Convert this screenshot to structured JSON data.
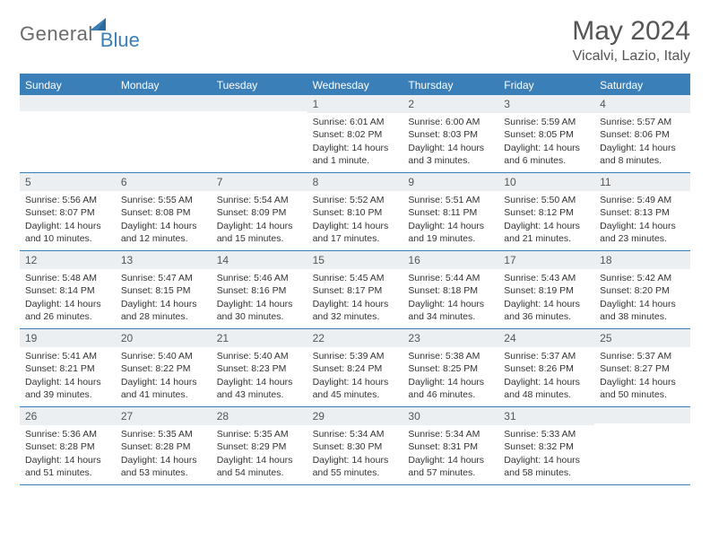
{
  "brand": {
    "part1": "General",
    "part2": "Blue"
  },
  "title": "May 2024",
  "location": "Vicalvi, Lazio, Italy",
  "colors": {
    "accent": "#3b7fb8",
    "header_bg": "#3b7fb8",
    "daynum_bg": "#eceff1",
    "text": "#333333",
    "title_text": "#555555"
  },
  "weekdays": [
    "Sunday",
    "Monday",
    "Tuesday",
    "Wednesday",
    "Thursday",
    "Friday",
    "Saturday"
  ],
  "weeks": [
    [
      {
        "n": "",
        "sr": "",
        "ss": "",
        "dl": ""
      },
      {
        "n": "",
        "sr": "",
        "ss": "",
        "dl": ""
      },
      {
        "n": "",
        "sr": "",
        "ss": "",
        "dl": ""
      },
      {
        "n": "1",
        "sr": "Sunrise: 6:01 AM",
        "ss": "Sunset: 8:02 PM",
        "dl": "Daylight: 14 hours and 1 minute."
      },
      {
        "n": "2",
        "sr": "Sunrise: 6:00 AM",
        "ss": "Sunset: 8:03 PM",
        "dl": "Daylight: 14 hours and 3 minutes."
      },
      {
        "n": "3",
        "sr": "Sunrise: 5:59 AM",
        "ss": "Sunset: 8:05 PM",
        "dl": "Daylight: 14 hours and 6 minutes."
      },
      {
        "n": "4",
        "sr": "Sunrise: 5:57 AM",
        "ss": "Sunset: 8:06 PM",
        "dl": "Daylight: 14 hours and 8 minutes."
      }
    ],
    [
      {
        "n": "5",
        "sr": "Sunrise: 5:56 AM",
        "ss": "Sunset: 8:07 PM",
        "dl": "Daylight: 14 hours and 10 minutes."
      },
      {
        "n": "6",
        "sr": "Sunrise: 5:55 AM",
        "ss": "Sunset: 8:08 PM",
        "dl": "Daylight: 14 hours and 12 minutes."
      },
      {
        "n": "7",
        "sr": "Sunrise: 5:54 AM",
        "ss": "Sunset: 8:09 PM",
        "dl": "Daylight: 14 hours and 15 minutes."
      },
      {
        "n": "8",
        "sr": "Sunrise: 5:52 AM",
        "ss": "Sunset: 8:10 PM",
        "dl": "Daylight: 14 hours and 17 minutes."
      },
      {
        "n": "9",
        "sr": "Sunrise: 5:51 AM",
        "ss": "Sunset: 8:11 PM",
        "dl": "Daylight: 14 hours and 19 minutes."
      },
      {
        "n": "10",
        "sr": "Sunrise: 5:50 AM",
        "ss": "Sunset: 8:12 PM",
        "dl": "Daylight: 14 hours and 21 minutes."
      },
      {
        "n": "11",
        "sr": "Sunrise: 5:49 AM",
        "ss": "Sunset: 8:13 PM",
        "dl": "Daylight: 14 hours and 23 minutes."
      }
    ],
    [
      {
        "n": "12",
        "sr": "Sunrise: 5:48 AM",
        "ss": "Sunset: 8:14 PM",
        "dl": "Daylight: 14 hours and 26 minutes."
      },
      {
        "n": "13",
        "sr": "Sunrise: 5:47 AM",
        "ss": "Sunset: 8:15 PM",
        "dl": "Daylight: 14 hours and 28 minutes."
      },
      {
        "n": "14",
        "sr": "Sunrise: 5:46 AM",
        "ss": "Sunset: 8:16 PM",
        "dl": "Daylight: 14 hours and 30 minutes."
      },
      {
        "n": "15",
        "sr": "Sunrise: 5:45 AM",
        "ss": "Sunset: 8:17 PM",
        "dl": "Daylight: 14 hours and 32 minutes."
      },
      {
        "n": "16",
        "sr": "Sunrise: 5:44 AM",
        "ss": "Sunset: 8:18 PM",
        "dl": "Daylight: 14 hours and 34 minutes."
      },
      {
        "n": "17",
        "sr": "Sunrise: 5:43 AM",
        "ss": "Sunset: 8:19 PM",
        "dl": "Daylight: 14 hours and 36 minutes."
      },
      {
        "n": "18",
        "sr": "Sunrise: 5:42 AM",
        "ss": "Sunset: 8:20 PM",
        "dl": "Daylight: 14 hours and 38 minutes."
      }
    ],
    [
      {
        "n": "19",
        "sr": "Sunrise: 5:41 AM",
        "ss": "Sunset: 8:21 PM",
        "dl": "Daylight: 14 hours and 39 minutes."
      },
      {
        "n": "20",
        "sr": "Sunrise: 5:40 AM",
        "ss": "Sunset: 8:22 PM",
        "dl": "Daylight: 14 hours and 41 minutes."
      },
      {
        "n": "21",
        "sr": "Sunrise: 5:40 AM",
        "ss": "Sunset: 8:23 PM",
        "dl": "Daylight: 14 hours and 43 minutes."
      },
      {
        "n": "22",
        "sr": "Sunrise: 5:39 AM",
        "ss": "Sunset: 8:24 PM",
        "dl": "Daylight: 14 hours and 45 minutes."
      },
      {
        "n": "23",
        "sr": "Sunrise: 5:38 AM",
        "ss": "Sunset: 8:25 PM",
        "dl": "Daylight: 14 hours and 46 minutes."
      },
      {
        "n": "24",
        "sr": "Sunrise: 5:37 AM",
        "ss": "Sunset: 8:26 PM",
        "dl": "Daylight: 14 hours and 48 minutes."
      },
      {
        "n": "25",
        "sr": "Sunrise: 5:37 AM",
        "ss": "Sunset: 8:27 PM",
        "dl": "Daylight: 14 hours and 50 minutes."
      }
    ],
    [
      {
        "n": "26",
        "sr": "Sunrise: 5:36 AM",
        "ss": "Sunset: 8:28 PM",
        "dl": "Daylight: 14 hours and 51 minutes."
      },
      {
        "n": "27",
        "sr": "Sunrise: 5:35 AM",
        "ss": "Sunset: 8:28 PM",
        "dl": "Daylight: 14 hours and 53 minutes."
      },
      {
        "n": "28",
        "sr": "Sunrise: 5:35 AM",
        "ss": "Sunset: 8:29 PM",
        "dl": "Daylight: 14 hours and 54 minutes."
      },
      {
        "n": "29",
        "sr": "Sunrise: 5:34 AM",
        "ss": "Sunset: 8:30 PM",
        "dl": "Daylight: 14 hours and 55 minutes."
      },
      {
        "n": "30",
        "sr": "Sunrise: 5:34 AM",
        "ss": "Sunset: 8:31 PM",
        "dl": "Daylight: 14 hours and 57 minutes."
      },
      {
        "n": "31",
        "sr": "Sunrise: 5:33 AM",
        "ss": "Sunset: 8:32 PM",
        "dl": "Daylight: 14 hours and 58 minutes."
      },
      {
        "n": "",
        "sr": "",
        "ss": "",
        "dl": ""
      }
    ]
  ]
}
